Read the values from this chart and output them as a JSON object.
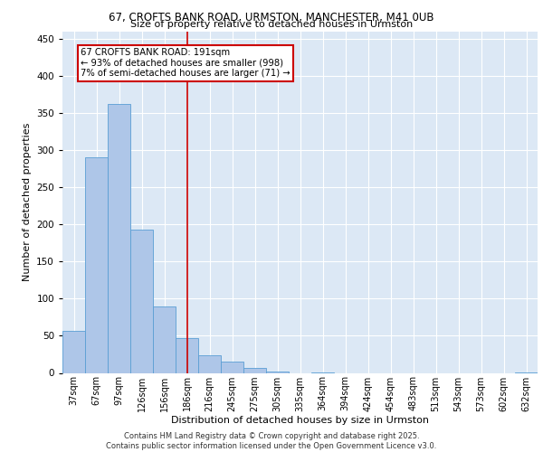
{
  "title_line1": "67, CROFTS BANK ROAD, URMSTON, MANCHESTER, M41 0UB",
  "title_line2": "Size of property relative to detached houses in Urmston",
  "xlabel": "Distribution of detached houses by size in Urmston",
  "ylabel": "Number of detached properties",
  "annotation_title": "67 CROFTS BANK ROAD: 191sqm",
  "annotation_line2": "← 93% of detached houses are smaller (998)",
  "annotation_line3": "7% of semi-detached houses are larger (71) →",
  "footer_line1": "Contains HM Land Registry data © Crown copyright and database right 2025.",
  "footer_line2": "Contains public sector information licensed under the Open Government Licence v3.0.",
  "categories": [
    "37sqm",
    "67sqm",
    "97sqm",
    "126sqm",
    "156sqm",
    "186sqm",
    "216sqm",
    "245sqm",
    "275sqm",
    "305sqm",
    "335sqm",
    "364sqm",
    "394sqm",
    "424sqm",
    "454sqm",
    "483sqm",
    "513sqm",
    "543sqm",
    "573sqm",
    "602sqm",
    "632sqm"
  ],
  "bar_heights": [
    57,
    291,
    362,
    193,
    90,
    47,
    24,
    15,
    7,
    2,
    0,
    1,
    0,
    0,
    0,
    0,
    0,
    0,
    0,
    0,
    1
  ],
  "bar_color": "#aec6e8",
  "bar_edge_color": "#5a9fd4",
  "vline_x_index": 5,
  "vline_color": "#cc0000",
  "annotation_box_color": "#cc0000",
  "background_color": "#dce8f5",
  "ylim": [
    0,
    460
  ],
  "yticks": [
    0,
    50,
    100,
    150,
    200,
    250,
    300,
    350,
    400,
    450
  ],
  "fig_width": 6.0,
  "fig_height": 5.0,
  "dpi": 100
}
